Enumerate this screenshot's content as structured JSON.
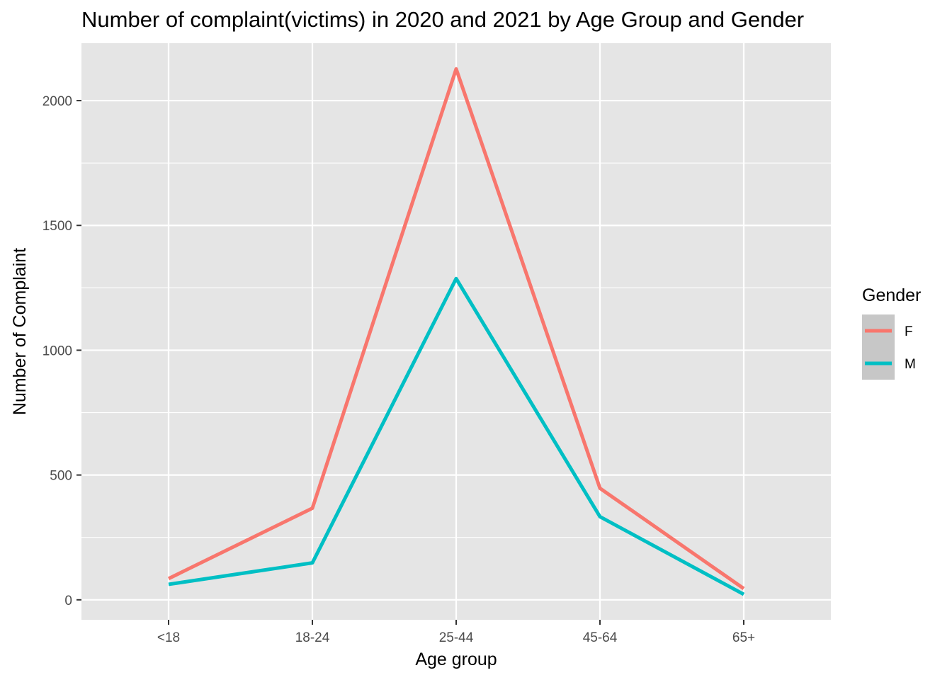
{
  "chart_data": {
    "type": "line",
    "title": "Number of complaint(victims) in 2020 and 2021 by Age Group and Gender",
    "xlabel": "Age group",
    "ylabel": "Number of Complaint",
    "categories": [
      "<18",
      "18-24",
      "25-44",
      "45-64",
      "65+"
    ],
    "yticks": [
      0,
      500,
      1000,
      1500,
      2000
    ],
    "ylim": [
      -80,
      2230
    ],
    "grid": true,
    "legend": {
      "title": "Gender",
      "position": "right"
    },
    "series": [
      {
        "name": "F",
        "color": "#F8766D",
        "values": [
          85,
          367,
          2127,
          447,
          45
        ]
      },
      {
        "name": "M",
        "color": "#00BFC4",
        "values": [
          62,
          148,
          1287,
          333,
          22
        ]
      }
    ]
  }
}
